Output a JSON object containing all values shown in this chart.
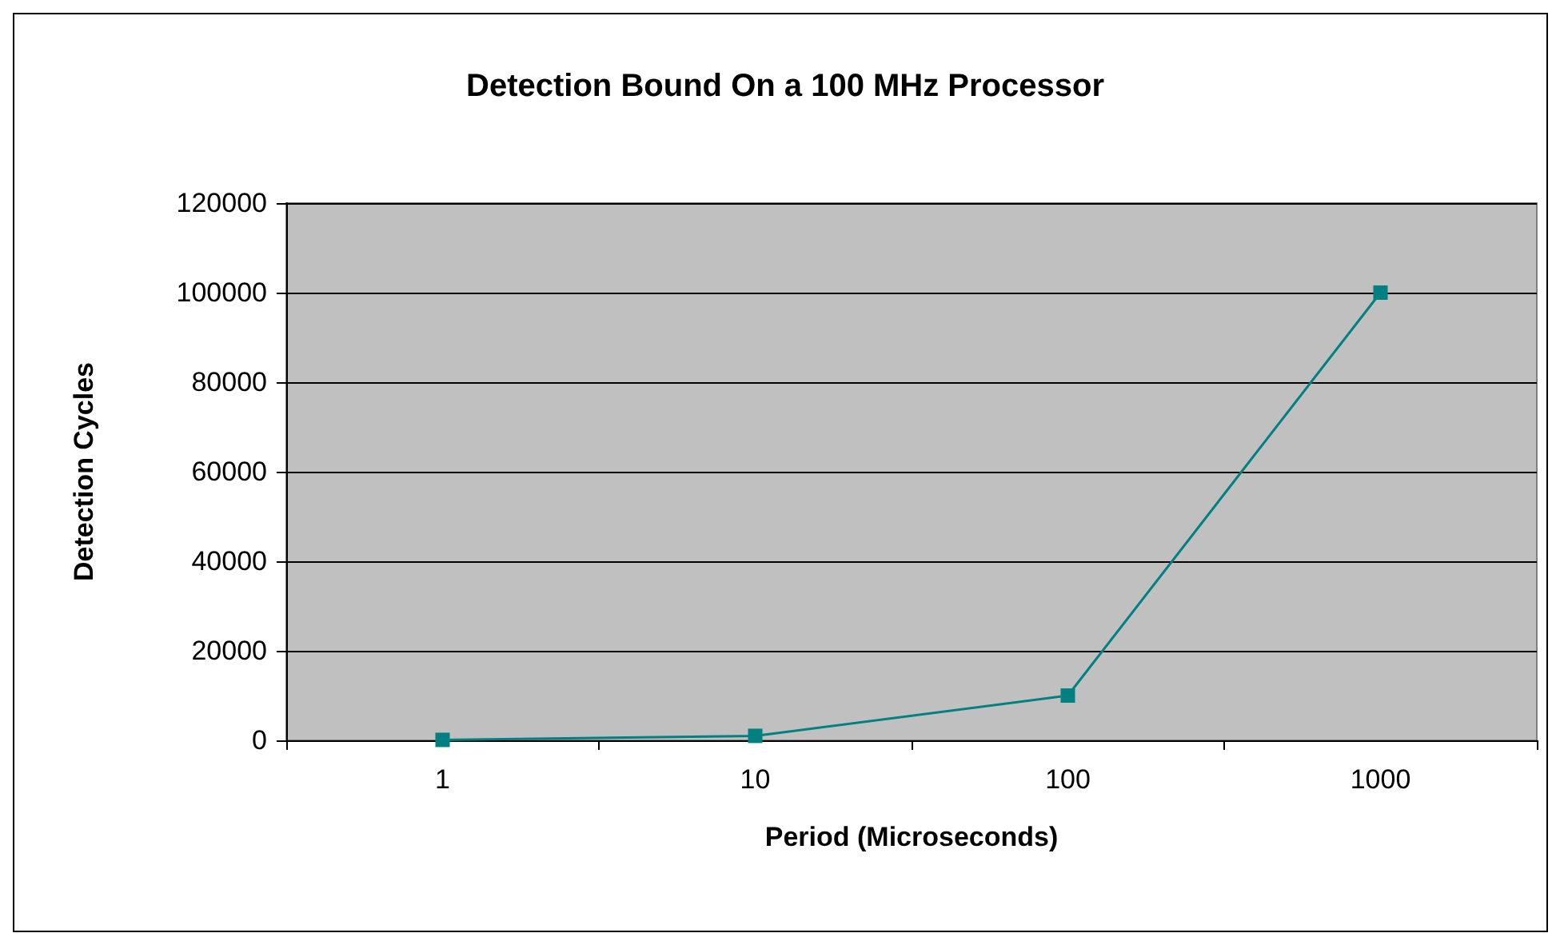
{
  "chart_data": {
    "type": "line",
    "title": "Detection Bound On a 100 MHz Processor",
    "xlabel": "Period (Microseconds)",
    "ylabel": "Detection Cycles",
    "categories": [
      "1",
      "10",
      "100",
      "1000"
    ],
    "series": [
      {
        "color": "#008080",
        "values": [
          100,
          1000,
          10000,
          100000
        ]
      }
    ],
    "ylim": [
      0,
      120000
    ],
    "yticks": [
      0,
      20000,
      40000,
      60000,
      80000,
      100000,
      120000
    ],
    "grid": "y",
    "marker": "square"
  }
}
